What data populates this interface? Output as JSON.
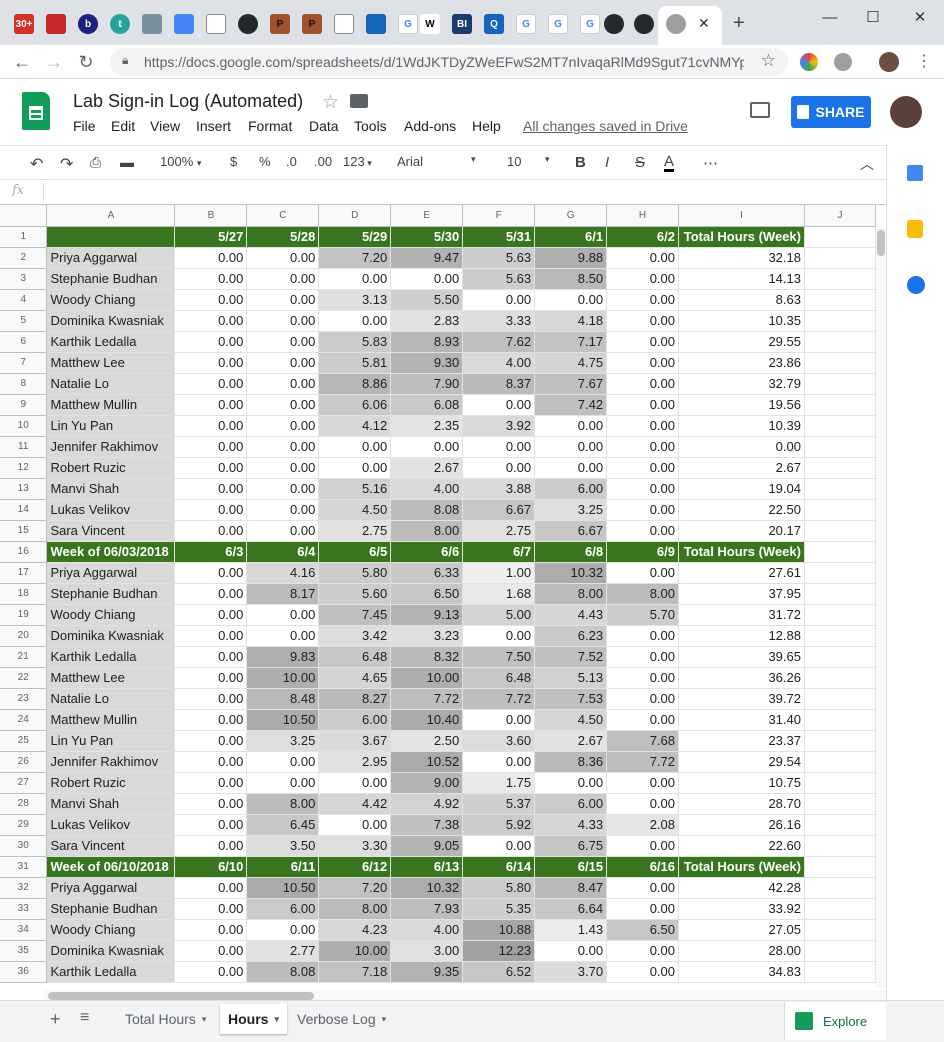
{
  "browser": {
    "tab_labels": [
      "30+",
      "b",
      "t",
      "P",
      "P",
      "W",
      "BI",
      "Q",
      "G",
      "G",
      "G",
      "G"
    ],
    "url": "https://docs.google.com/spreadsheets/d/1WdJKTDyZWeEFwS2MT7nIvaqaRlMd9Sgut71cvNMYp..."
  },
  "app": {
    "title": "Lab Sign-in Log (Automated)",
    "menu": [
      "File",
      "Edit",
      "View",
      "Insert",
      "Format",
      "Data",
      "Tools",
      "Add-ons",
      "Help"
    ],
    "save_status": "All changes saved in Drive",
    "share_label": "SHARE"
  },
  "toolbar": {
    "zoom": "100%",
    "currency": "$",
    "percent": "%",
    "dec_less": ".0",
    "dec_more": ".00",
    "more_formats": "123",
    "font": "Arial",
    "font_size": "10",
    "bold": "B",
    "italic": "I",
    "strike": "S",
    "text_color": "A",
    "more": "⋯"
  },
  "formula_bar": {
    "fx": "fx",
    "value": ""
  },
  "columns": [
    "A",
    "B",
    "C",
    "D",
    "E",
    "F",
    "G",
    "H",
    "I",
    "J"
  ],
  "rows": [
    {
      "n": "1",
      "type": "hdr",
      "cells": [
        "",
        "5/27",
        "5/28",
        "5/29",
        "5/30",
        "5/31",
        "6/1",
        "6/2",
        "Total Hours (Week)"
      ]
    },
    {
      "n": "2",
      "cells": [
        "Priya Aggarwal",
        "0.00",
        "0.00",
        "7.20",
        "9.47",
        "5.63",
        "9.88",
        "0.00",
        "32.18"
      ]
    },
    {
      "n": "3",
      "cells": [
        "Stephanie Budhan",
        "0.00",
        "0.00",
        "0.00",
        "0.00",
        "5.63",
        "8.50",
        "0.00",
        "14.13"
      ]
    },
    {
      "n": "4",
      "cells": [
        "Woody Chiang",
        "0.00",
        "0.00",
        "3.13",
        "5.50",
        "0.00",
        "0.00",
        "0.00",
        "8.63"
      ]
    },
    {
      "n": "5",
      "cells": [
        "Dominika Kwasniak",
        "0.00",
        "0.00",
        "0.00",
        "2.83",
        "3.33",
        "4.18",
        "0.00",
        "10.35"
      ]
    },
    {
      "n": "6",
      "cells": [
        "Karthik Ledalla",
        "0.00",
        "0.00",
        "5.83",
        "8.93",
        "7.62",
        "7.17",
        "0.00",
        "29.55"
      ]
    },
    {
      "n": "7",
      "cells": [
        "Matthew Lee",
        "0.00",
        "0.00",
        "5.81",
        "9.30",
        "4.00",
        "4.75",
        "0.00",
        "23.86"
      ]
    },
    {
      "n": "8",
      "cells": [
        "Natalie Lo",
        "0.00",
        "0.00",
        "8.86",
        "7.90",
        "8.37",
        "7.67",
        "0.00",
        "32.79"
      ]
    },
    {
      "n": "9",
      "cells": [
        "Matthew Mullin",
        "0.00",
        "0.00",
        "6.06",
        "6.08",
        "0.00",
        "7.42",
        "0.00",
        "19.56"
      ]
    },
    {
      "n": "10",
      "cells": [
        "Lin Yu Pan",
        "0.00",
        "0.00",
        "4.12",
        "2.35",
        "3.92",
        "0.00",
        "0.00",
        "10.39"
      ]
    },
    {
      "n": "11",
      "cells": [
        "Jennifer Rakhimov",
        "0.00",
        "0.00",
        "0.00",
        "0.00",
        "0.00",
        "0.00",
        "0.00",
        "0.00"
      ]
    },
    {
      "n": "12",
      "cells": [
        "Robert Ruzic",
        "0.00",
        "0.00",
        "0.00",
        "2.67",
        "0.00",
        "0.00",
        "0.00",
        "2.67"
      ]
    },
    {
      "n": "13",
      "cells": [
        "Manvi Shah",
        "0.00",
        "0.00",
        "5.16",
        "4.00",
        "3.88",
        "6.00",
        "0.00",
        "19.04"
      ]
    },
    {
      "n": "14",
      "cells": [
        "Lukas Velikov",
        "0.00",
        "0.00",
        "4.50",
        "8.08",
        "6.67",
        "3.25",
        "0.00",
        "22.50"
      ]
    },
    {
      "n": "15",
      "cells": [
        "Sara Vincent",
        "0.00",
        "0.00",
        "2.75",
        "8.00",
        "2.75",
        "6.67",
        "0.00",
        "20.17"
      ]
    },
    {
      "n": "16",
      "type": "hdr",
      "cells": [
        "Week of 06/03/2018",
        "6/3",
        "6/4",
        "6/5",
        "6/6",
        "6/7",
        "6/8",
        "6/9",
        "Total Hours (Week)"
      ]
    },
    {
      "n": "17",
      "cells": [
        "Priya Aggarwal",
        "0.00",
        "4.16",
        "5.80",
        "6.33",
        "1.00",
        "10.32",
        "0.00",
        "27.61"
      ]
    },
    {
      "n": "18",
      "cells": [
        "Stephanie Budhan",
        "0.00",
        "8.17",
        "5.60",
        "6.50",
        "1.68",
        "8.00",
        "8.00",
        "37.95"
      ]
    },
    {
      "n": "19",
      "cells": [
        "Woody Chiang",
        "0.00",
        "0.00",
        "7.45",
        "9.13",
        "5.00",
        "4.43",
        "5.70",
        "31.72"
      ]
    },
    {
      "n": "20",
      "cells": [
        "Dominika Kwasniak",
        "0.00",
        "0.00",
        "3.42",
        "3.23",
        "0.00",
        "6.23",
        "0.00",
        "12.88"
      ]
    },
    {
      "n": "21",
      "cells": [
        "Karthik Ledalla",
        "0.00",
        "9.83",
        "6.48",
        "8.32",
        "7.50",
        "7.52",
        "0.00",
        "39.65"
      ]
    },
    {
      "n": "22",
      "cells": [
        "Matthew Lee",
        "0.00",
        "10.00",
        "4.65",
        "10.00",
        "6.48",
        "5.13",
        "0.00",
        "36.26"
      ]
    },
    {
      "n": "23",
      "cells": [
        "Natalie Lo",
        "0.00",
        "8.48",
        "8.27",
        "7.72",
        "7.72",
        "7.53",
        "0.00",
        "39.72"
      ]
    },
    {
      "n": "24",
      "cells": [
        "Matthew Mullin",
        "0.00",
        "10.50",
        "6.00",
        "10.40",
        "0.00",
        "4.50",
        "0.00",
        "31.40"
      ]
    },
    {
      "n": "25",
      "cells": [
        "Lin Yu Pan",
        "0.00",
        "3.25",
        "3.67",
        "2.50",
        "3.60",
        "2.67",
        "7.68",
        "23.37"
      ]
    },
    {
      "n": "26",
      "cells": [
        "Jennifer Rakhimov",
        "0.00",
        "0.00",
        "2.95",
        "10.52",
        "0.00",
        "8.36",
        "7.72",
        "29.54"
      ]
    },
    {
      "n": "27",
      "cells": [
        "Robert Ruzic",
        "0.00",
        "0.00",
        "0.00",
        "9.00",
        "1.75",
        "0.00",
        "0.00",
        "10.75"
      ]
    },
    {
      "n": "28",
      "cells": [
        "Manvi Shah",
        "0.00",
        "8.00",
        "4.42",
        "4.92",
        "5.37",
        "6.00",
        "0.00",
        "28.70"
      ]
    },
    {
      "n": "29",
      "cells": [
        "Lukas Velikov",
        "0.00",
        "6.45",
        "0.00",
        "7.38",
        "5.92",
        "4.33",
        "2.08",
        "26.16"
      ]
    },
    {
      "n": "30",
      "cells": [
        "Sara Vincent",
        "0.00",
        "3.50",
        "3.30",
        "9.05",
        "0.00",
        "6.75",
        "0.00",
        "22.60"
      ]
    },
    {
      "n": "31",
      "type": "hdr",
      "cells": [
        "Week of 06/10/2018",
        "6/10",
        "6/11",
        "6/12",
        "6/13",
        "6/14",
        "6/15",
        "6/16",
        "Total Hours (Week)"
      ]
    },
    {
      "n": "32",
      "cells": [
        "Priya Aggarwal",
        "0.00",
        "10.50",
        "7.20",
        "10.32",
        "5.80",
        "8.47",
        "0.00",
        "42.28"
      ]
    },
    {
      "n": "33",
      "cells": [
        "Stephanie Budhan",
        "0.00",
        "6.00",
        "8.00",
        "7.93",
        "5.35",
        "6.64",
        "0.00",
        "33.92"
      ]
    },
    {
      "n": "34",
      "cells": [
        "Woody Chiang",
        "0.00",
        "0.00",
        "4.23",
        "4.00",
        "10.88",
        "1.43",
        "6.50",
        "27.05"
      ]
    },
    {
      "n": "35",
      "cells": [
        "Dominika Kwasniak",
        "0.00",
        "2.77",
        "10.00",
        "3.00",
        "12.23",
        "0.00",
        "0.00",
        "28.00"
      ]
    },
    {
      "n": "36",
      "cells": [
        "Karthik Ledalla",
        "0.00",
        "8.08",
        "7.18",
        "9.35",
        "6.52",
        "3.70",
        "0.00",
        "34.83"
      ]
    }
  ],
  "sheet_tabs": [
    "Total Hours",
    "Hours",
    "Verbose Log"
  ],
  "active_sheet": "Hours",
  "explore_label": "Explore",
  "colors": {
    "header_green": "#38761d",
    "name_gray": "#d9d9d9",
    "accent_blue": "#1a73e8"
  }
}
